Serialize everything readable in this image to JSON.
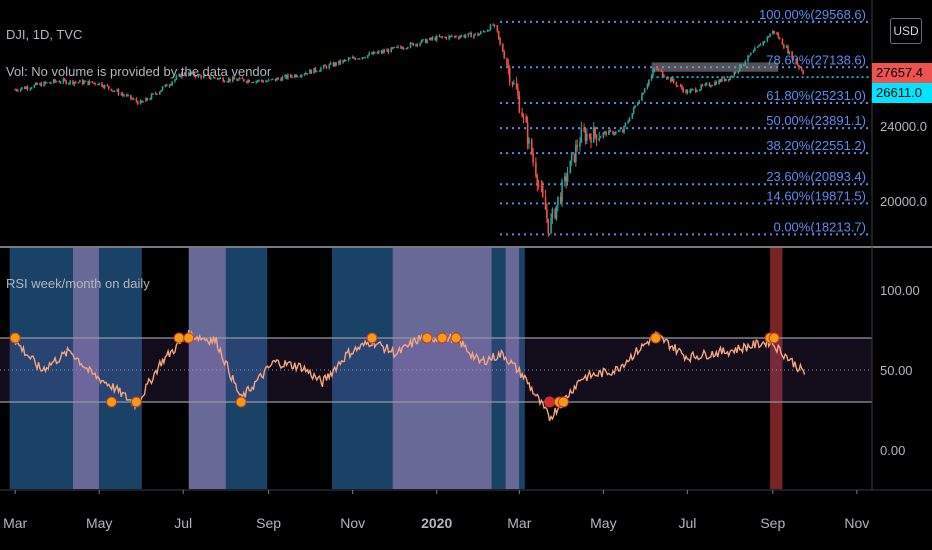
{
  "header": {
    "symbol_line": "DJI, 1D, TVC",
    "volume_line": "Vol: No volume is provided by the data vendor",
    "currency_button": "USD"
  },
  "indicator": {
    "title": "RSI week/month on daily"
  },
  "price_tags": {
    "last_price": "27657.4",
    "level_price": "26611.0"
  },
  "colors": {
    "price_up": "#26a69a",
    "price_down": "#ef5350",
    "fib_line": "#5b8def",
    "rsi_line": "#f4a582",
    "marker": "#f39c12",
    "marker_red": "#d32f2f",
    "bg_blue": "#1f4e79",
    "bg_lavender": "#7b7bb3",
    "bg_red": "#8b2a2a",
    "tag_red": "#ef5350",
    "tag_cyan": "#00e5ff"
  },
  "chart_data": [
    {
      "type": "candlestick",
      "title": "DJI, 1D, TVC",
      "y_ticks": [
        "20000.0",
        "24000.0"
      ],
      "ylim": [
        17700,
        30200
      ],
      "fib_levels": [
        {
          "label": "100.00%(29568.6)",
          "ratio": 1.0,
          "price": 29568.6
        },
        {
          "label": "78.60%(27138.6)",
          "ratio": 0.786,
          "price": 27138.6
        },
        {
          "label": "61.80%(25231.0)",
          "ratio": 0.618,
          "price": 25231.0
        },
        {
          "label": "50.00%(23891.1)",
          "ratio": 0.5,
          "price": 23891.1
        },
        {
          "label": "38.20%(22551.2)",
          "ratio": 0.382,
          "price": 22551.2
        },
        {
          "label": "23.60%(20893.4)",
          "ratio": 0.236,
          "price": 20893.4
        },
        {
          "label": "14.60%(19871.5)",
          "ratio": 0.146,
          "price": 19871.5
        },
        {
          "label": "0.00%(18213.7)",
          "ratio": 0.0,
          "price": 18213.7
        }
      ],
      "x": [
        "2019-03-01",
        "2019-04-01",
        "2019-05-01",
        "2019-06-01",
        "2019-07-01",
        "2019-08-01",
        "2019-09-01",
        "2019-10-01",
        "2019-11-01",
        "2019-12-01",
        "2020-01-01",
        "2020-02-01",
        "2020-02-12",
        "2020-03-01",
        "2020-03-23",
        "2020-04-15",
        "2020-05-15",
        "2020-06-08",
        "2020-07-01",
        "2020-08-01",
        "2020-09-02",
        "2020-09-24"
      ],
      "close": [
        25950,
        26400,
        26300,
        25200,
        26800,
        26500,
        26400,
        26900,
        27600,
        28100,
        28700,
        28900,
        29400,
        25400,
        18600,
        23500,
        23700,
        27100,
        25800,
        26600,
        29100,
        26800
      ]
    },
    {
      "type": "line",
      "title": "RSI week/month on daily",
      "y_ticks": [
        "0.00",
        "50.00",
        "100.00"
      ],
      "ylim": [
        -25,
        125
      ],
      "bands": [
        30,
        70
      ],
      "x": [
        "2019-03-01",
        "2019-03-20",
        "2019-04-10",
        "2019-04-25",
        "2019-05-10",
        "2019-05-28",
        "2019-06-15",
        "2019-07-05",
        "2019-07-25",
        "2019-08-12",
        "2019-09-05",
        "2019-09-25",
        "2019-10-10",
        "2019-10-28",
        "2019-11-15",
        "2019-12-03",
        "2019-12-20",
        "2020-01-15",
        "2020-02-01",
        "2020-02-18",
        "2020-03-05",
        "2020-03-23",
        "2020-04-15",
        "2020-05-10",
        "2020-06-08",
        "2020-07-01",
        "2020-08-01",
        "2020-08-30",
        "2020-09-24"
      ],
      "values": [
        68,
        50,
        62,
        48,
        40,
        28,
        55,
        72,
        68,
        32,
        55,
        52,
        42,
        60,
        68,
        60,
        70,
        70,
        55,
        60,
        45,
        20,
        45,
        50,
        72,
        58,
        62,
        68,
        48
      ],
      "overbought_markers": [
        "2019-03-01",
        "2019-06-28",
        "2019-07-05",
        "2019-11-15",
        "2019-12-25",
        "2020-01-05",
        "2020-01-15",
        "2020-06-08",
        "2020-08-30",
        "2020-09-02"
      ],
      "oversold_markers": [
        "2019-05-10",
        "2019-05-28",
        "2019-08-12",
        "2020-03-23",
        "2020-03-30",
        "2020-04-02"
      ]
    }
  ],
  "backgrounds": [
    {
      "from": "2019-02-25",
      "to": "2019-04-12",
      "tone": "bg_blue"
    },
    {
      "from": "2019-04-12",
      "to": "2019-05-01",
      "tone": "bg_lavender"
    },
    {
      "from": "2019-05-01",
      "to": "2019-06-01",
      "tone": "bg_blue"
    },
    {
      "from": "2019-07-05",
      "to": "2019-08-01",
      "tone": "bg_lavender"
    },
    {
      "from": "2019-08-01",
      "to": "2019-08-31",
      "tone": "bg_blue"
    },
    {
      "from": "2019-10-17",
      "to": "2019-11-30",
      "tone": "bg_blue"
    },
    {
      "from": "2019-11-30",
      "to": "2020-02-10",
      "tone": "bg_lavender"
    },
    {
      "from": "2020-02-10",
      "to": "2020-02-20",
      "tone": "bg_blue"
    },
    {
      "from": "2020-02-20",
      "to": "2020-03-01",
      "tone": "bg_lavender"
    },
    {
      "from": "2020-03-01",
      "to": "2020-03-05",
      "tone": "bg_blue"
    },
    {
      "from": "2020-08-30",
      "to": "2020-09-08",
      "tone": "bg_red"
    }
  ],
  "x_axis": {
    "ticks": [
      {
        "label": "Mar",
        "date": "2019-03-01"
      },
      {
        "label": "May",
        "date": "2019-05-01"
      },
      {
        "label": "Jul",
        "date": "2019-07-01"
      },
      {
        "label": "Sep",
        "date": "2019-09-01"
      },
      {
        "label": "Nov",
        "date": "2019-11-01"
      },
      {
        "label": "2020",
        "date": "2020-01-01"
      },
      {
        "label": "Mar",
        "date": "2020-03-01"
      },
      {
        "label": "May",
        "date": "2020-05-01"
      },
      {
        "label": "Jul",
        "date": "2020-07-01"
      },
      {
        "label": "Sep",
        "date": "2020-09-01"
      },
      {
        "label": "Nov",
        "date": "2020-11-01"
      }
    ]
  }
}
